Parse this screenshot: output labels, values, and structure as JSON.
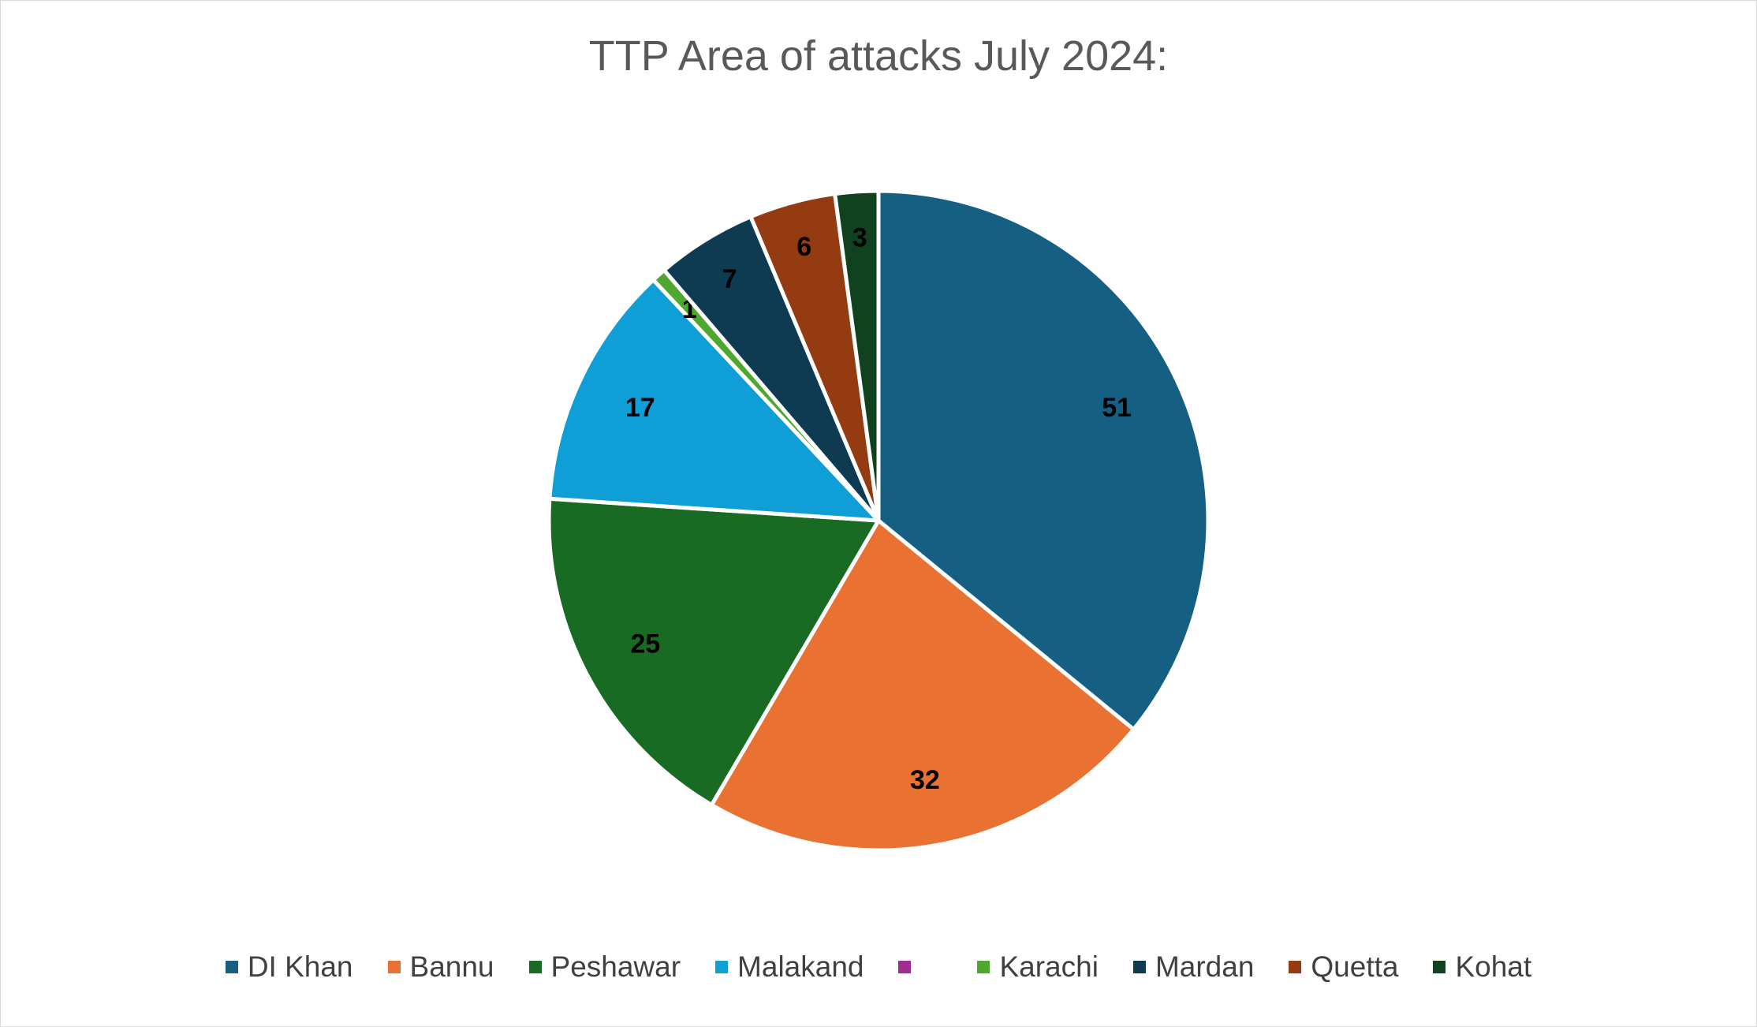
{
  "chart_data": {
    "type": "pie",
    "title": "TTP Area of attacks July 2024:",
    "categories": [
      "DI Khan",
      "Bannu",
      "Peshawar",
      "Malakand",
      "",
      "Karachi",
      "Mardan",
      "Quetta",
      "Kohat"
    ],
    "values": [
      51,
      32,
      25,
      17,
      0,
      1,
      7,
      6,
      3
    ],
    "data_labels": [
      "51",
      "32",
      "25",
      "17",
      "",
      "1",
      "7",
      "6",
      "3"
    ],
    "colors": [
      "#156082",
      "#E97132",
      "#196B24",
      "#0F9ED5",
      "#A02B93",
      "#4EA72E",
      "#0E3A52",
      "#953B11",
      "#104220"
    ],
    "legend_position": "bottom",
    "start_angle": "12 o'clock, clockwise"
  }
}
